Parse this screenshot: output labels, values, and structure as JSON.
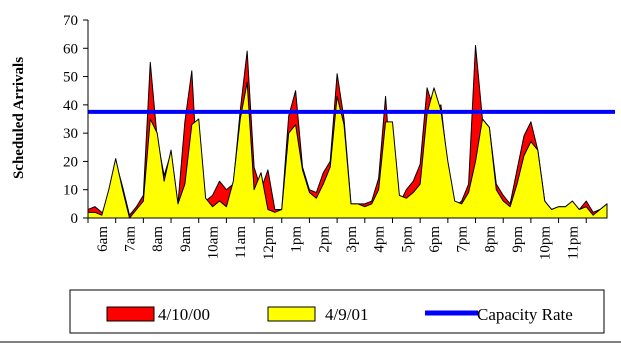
{
  "chart_data": {
    "type": "area",
    "title": "",
    "ylabel": "Scheduled Arrivals",
    "xlabel": "",
    "ylim": [
      0,
      70
    ],
    "yticks": [
      0,
      10,
      20,
      30,
      40,
      50,
      60,
      70
    ],
    "x_tick_labels": [
      "6am",
      "7am",
      "8am",
      "9am",
      "10am",
      "11am",
      "12pm",
      "1pm",
      "2pm",
      "3pm",
      "4pm",
      "5pm",
      "6pm",
      "7pm",
      "8pm",
      "9pm",
      "10pm",
      "11pm"
    ],
    "points_per_hour": 4,
    "series": [
      {
        "name": "4/10/00",
        "color": "#ff0000",
        "values": [
          3,
          4,
          2,
          1,
          20,
          11,
          1,
          4,
          8,
          55,
          28,
          15,
          23,
          5,
          34,
          52,
          8,
          6,
          8,
          13,
          10,
          12,
          38,
          59,
          18,
          10,
          17,
          3,
          3,
          36,
          45,
          18,
          10,
          9,
          16,
          20,
          51,
          35,
          5,
          5,
          5,
          6,
          14,
          43,
          9,
          5,
          10,
          13,
          19,
          46,
          38,
          40,
          18,
          4,
          6,
          12,
          61,
          35,
          32,
          12,
          8,
          5,
          17,
          29,
          34,
          24,
          6,
          3,
          4,
          4,
          5,
          3,
          6,
          2,
          3,
          5
        ]
      },
      {
        "name": "4/9/01",
        "color": "#ffff00",
        "values": [
          2,
          2,
          1,
          10,
          21,
          10,
          0,
          3,
          6,
          35,
          30,
          13,
          24,
          5,
          12,
          33,
          35,
          7,
          4,
          6,
          4,
          13,
          35,
          48,
          10,
          16,
          3,
          2,
          3,
          30,
          33,
          17,
          9,
          7,
          12,
          18,
          43,
          33,
          5,
          5,
          4,
          5,
          10,
          34,
          34,
          8,
          7,
          9,
          12,
          37,
          46,
          38,
          20,
          6,
          5,
          9,
          20,
          35,
          32,
          10,
          6,
          4,
          12,
          22,
          27,
          24,
          6,
          3,
          4,
          4,
          6,
          3,
          4,
          1,
          3,
          5
        ]
      }
    ],
    "capacity": {
      "name": "Capacity Rate",
      "value": 37.5,
      "color": "#0000ff"
    },
    "legend": {
      "placement": "bottom"
    }
  }
}
